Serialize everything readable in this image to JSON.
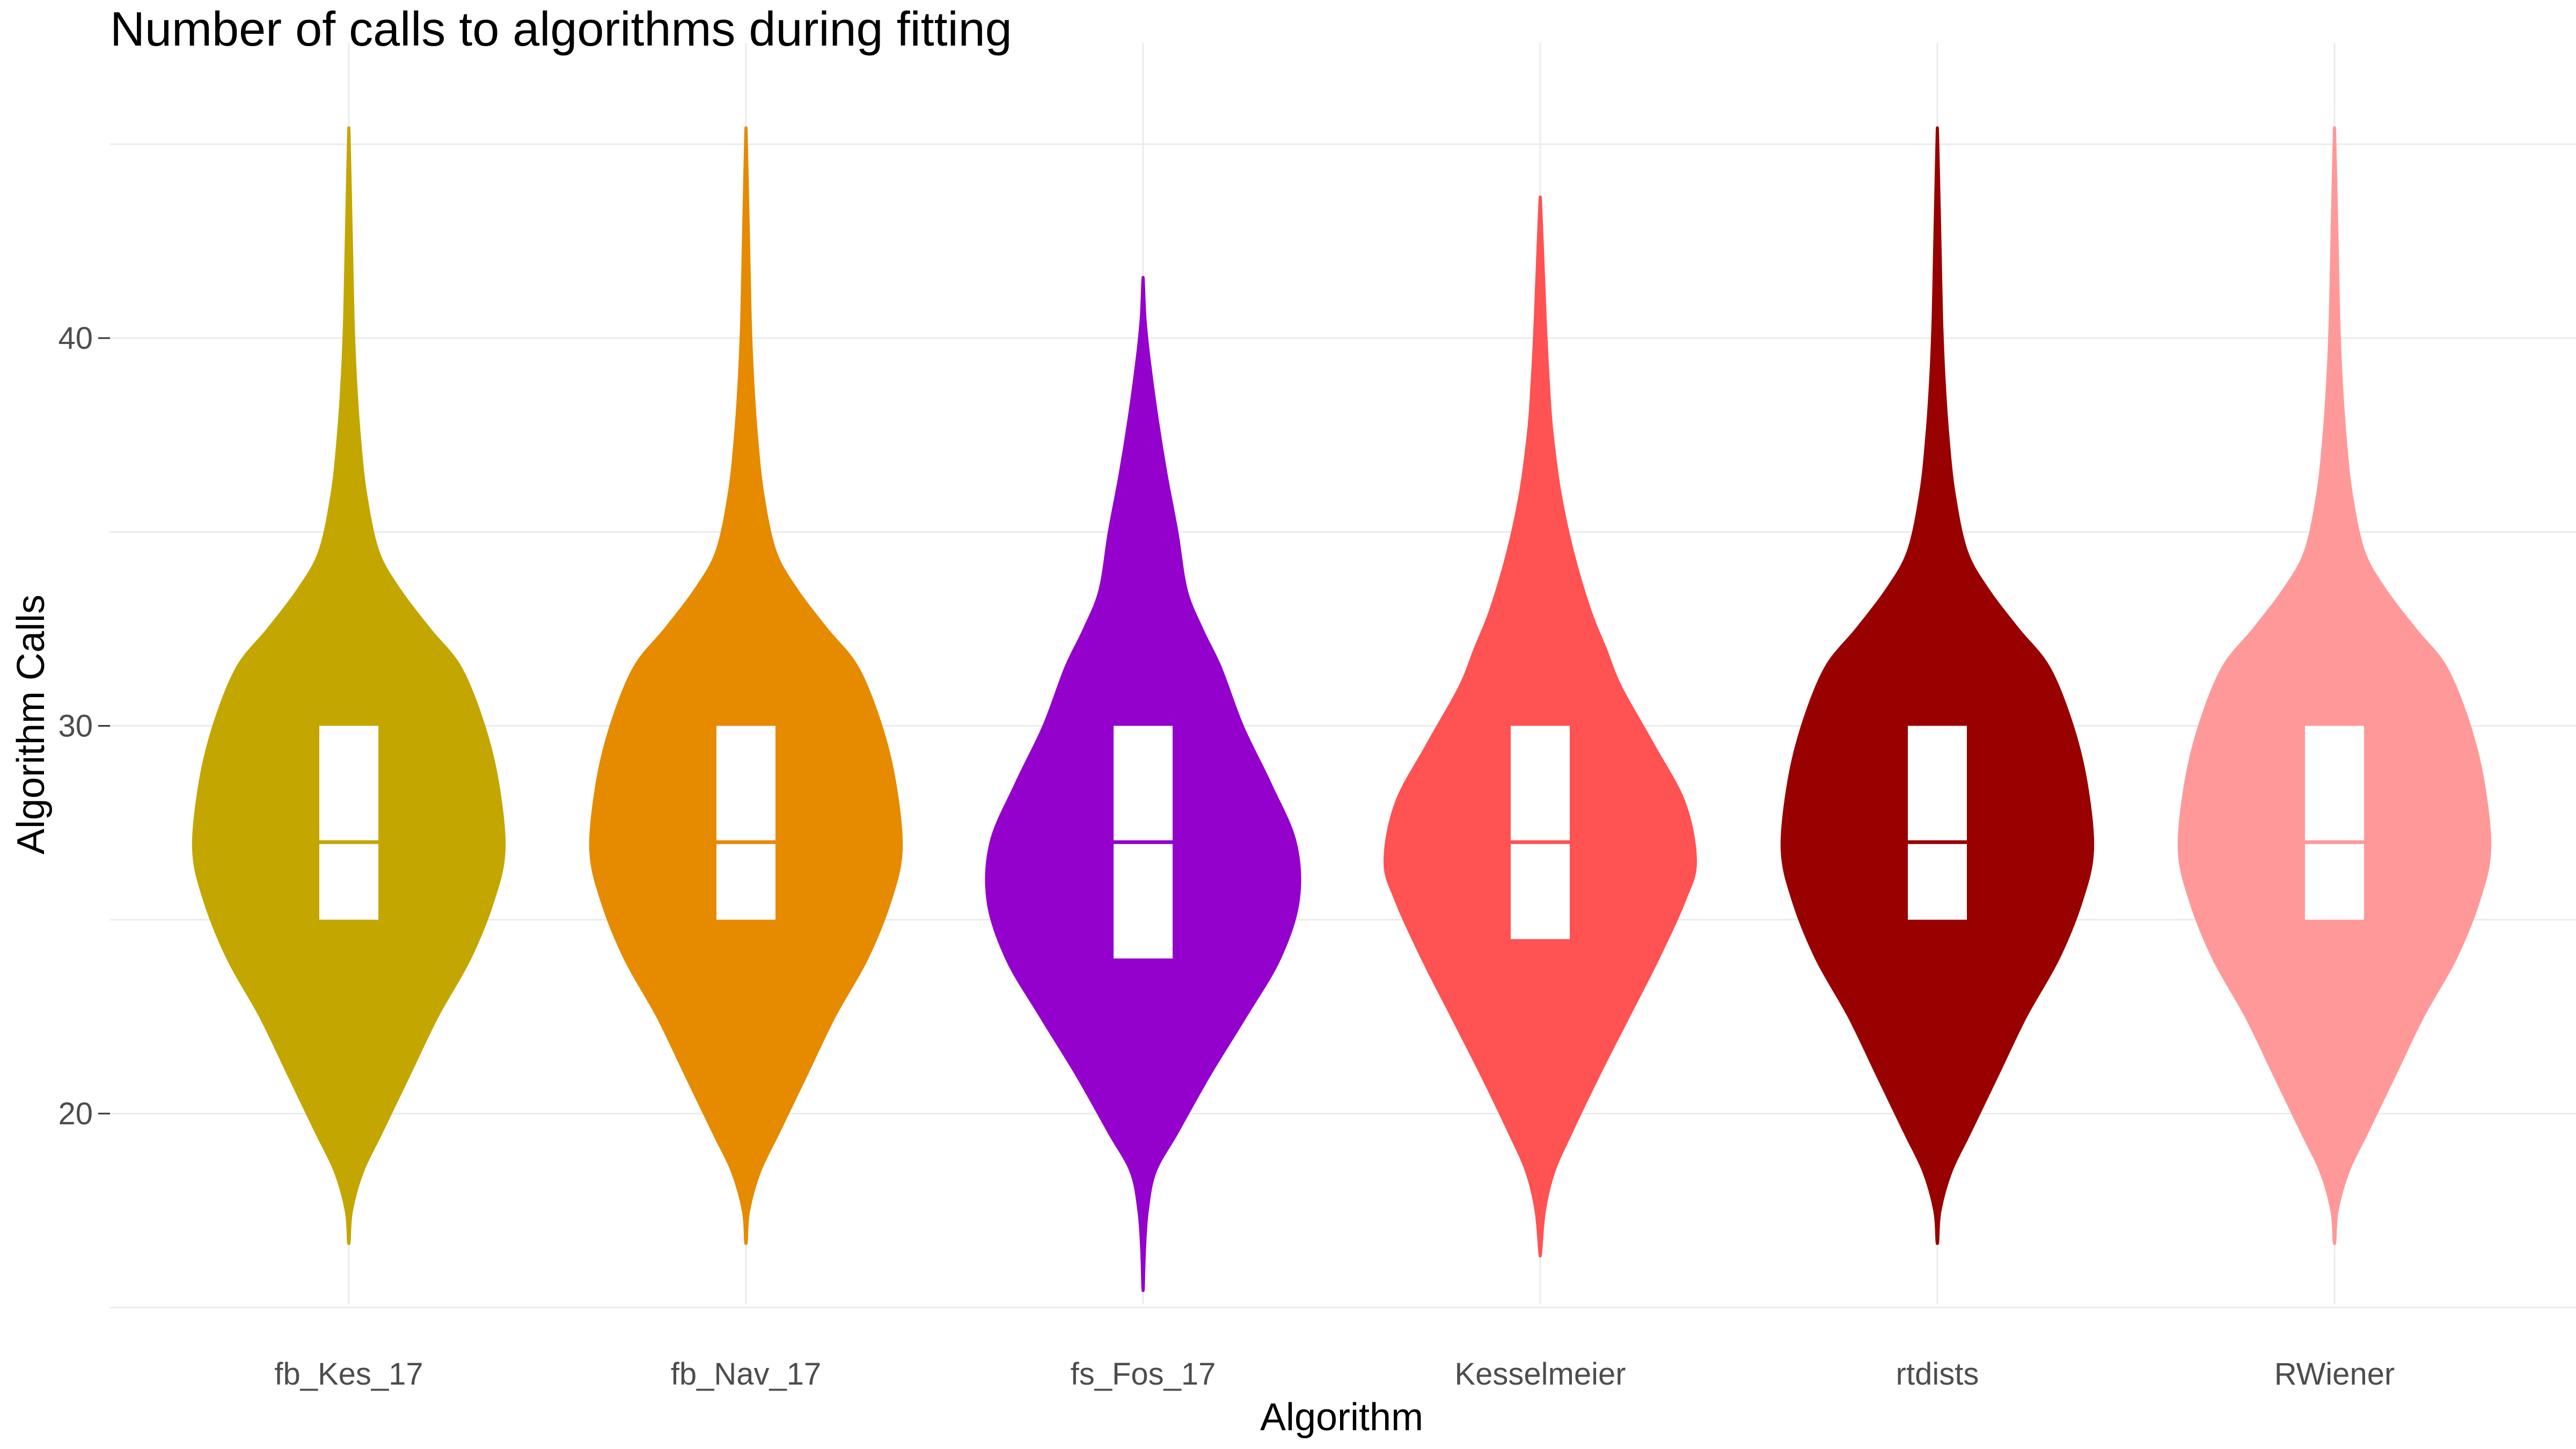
{
  "chart_data": {
    "type": "violin",
    "title": "Number of calls to algorithms during fitting",
    "xlabel": "Algorithm",
    "ylabel": "Algorithm Calls",
    "ylim": [
      14,
      46
    ],
    "y_ticks": [
      20,
      30,
      40
    ],
    "y_tick_labels": [
      "20",
      "30",
      "40"
    ],
    "grid": true,
    "legend": "none",
    "categories": [
      "fb_Kes_17",
      "fb_Nav_17",
      "fs_Fos_17",
      "Kesselmeier",
      "rtdists",
      "RWiener"
    ],
    "series": [
      {
        "category": "fb_Kes_17",
        "color": "#C4A600",
        "min": 16.7,
        "max": 45.3,
        "q1": 25,
        "median": 27,
        "q3": 30,
        "density": [
          [
            16.7,
            0.005
          ],
          [
            17.5,
            0.02
          ],
          [
            18.5,
            0.09
          ],
          [
            19.5,
            0.21
          ],
          [
            21,
            0.39
          ],
          [
            22.5,
            0.57
          ],
          [
            24,
            0.78
          ],
          [
            25.5,
            0.93
          ],
          [
            26.8,
            1.0
          ],
          [
            28.5,
            0.96
          ],
          [
            30,
            0.87
          ],
          [
            31.5,
            0.72
          ],
          [
            32.5,
            0.52
          ],
          [
            33.5,
            0.33
          ],
          [
            34.5,
            0.19
          ],
          [
            36,
            0.11
          ],
          [
            37.5,
            0.07
          ],
          [
            39,
            0.045
          ],
          [
            40.5,
            0.03
          ],
          [
            42,
            0.022
          ],
          [
            43.5,
            0.014
          ],
          [
            45.3,
            0.004
          ]
        ]
      },
      {
        "category": "fb_Nav_17",
        "color": "#E68A00",
        "min": 16.7,
        "max": 45.3,
        "q1": 25,
        "median": 27,
        "q3": 30,
        "density": [
          [
            16.7,
            0.005
          ],
          [
            17.5,
            0.02
          ],
          [
            18.5,
            0.09
          ],
          [
            19.5,
            0.21
          ],
          [
            21,
            0.39
          ],
          [
            22.5,
            0.57
          ],
          [
            24,
            0.78
          ],
          [
            25.5,
            0.93
          ],
          [
            26.8,
            1.0
          ],
          [
            28.5,
            0.96
          ],
          [
            30,
            0.87
          ],
          [
            31.5,
            0.72
          ],
          [
            32.5,
            0.52
          ],
          [
            33.5,
            0.33
          ],
          [
            34.5,
            0.19
          ],
          [
            36,
            0.11
          ],
          [
            37.5,
            0.07
          ],
          [
            39,
            0.045
          ],
          [
            40.5,
            0.03
          ],
          [
            42,
            0.022
          ],
          [
            43.5,
            0.014
          ],
          [
            45.3,
            0.004
          ]
        ]
      },
      {
        "category": "fs_Fos_17",
        "color": "#9400CC",
        "min": 15.5,
        "max": 41.5,
        "q1": 24,
        "median": 27,
        "q3": 30,
        "density": [
          [
            15.5,
            0.004
          ],
          [
            16.5,
            0.012
          ],
          [
            17.5,
            0.03
          ],
          [
            18.5,
            0.08
          ],
          [
            19.5,
            0.22
          ],
          [
            21,
            0.43
          ],
          [
            22.5,
            0.66
          ],
          [
            24,
            0.88
          ],
          [
            25.5,
            1.0
          ],
          [
            27,
            0.98
          ],
          [
            28.5,
            0.82
          ],
          [
            30,
            0.64
          ],
          [
            31.5,
            0.5
          ],
          [
            32.5,
            0.38
          ],
          [
            33.5,
            0.28
          ],
          [
            35,
            0.22
          ],
          [
            36.5,
            0.15
          ],
          [
            38,
            0.09
          ],
          [
            39.5,
            0.04
          ],
          [
            40.5,
            0.015
          ],
          [
            41.5,
            0.004
          ]
        ]
      },
      {
        "category": "Kesselmeier",
        "color": "#FF5252",
        "min": 16.4,
        "max": 43.5,
        "q1": 24.5,
        "median": 27,
        "q3": 30,
        "density": [
          [
            16.4,
            0.005
          ],
          [
            17.5,
            0.03
          ],
          [
            18.5,
            0.09
          ],
          [
            19.5,
            0.2
          ],
          [
            21,
            0.38
          ],
          [
            22.5,
            0.57
          ],
          [
            24,
            0.76
          ],
          [
            25.5,
            0.93
          ],
          [
            26.5,
            1.0
          ],
          [
            28,
            0.93
          ],
          [
            29.5,
            0.73
          ],
          [
            31,
            0.52
          ],
          [
            32,
            0.42
          ],
          [
            33,
            0.32
          ],
          [
            34.5,
            0.21
          ],
          [
            36,
            0.13
          ],
          [
            37.5,
            0.08
          ],
          [
            38.5,
            0.06
          ],
          [
            40,
            0.04
          ],
          [
            41.5,
            0.025
          ],
          [
            43.5,
            0.005
          ]
        ]
      },
      {
        "category": "rtdists",
        "color": "#990000",
        "min": 16.7,
        "max": 45.3,
        "q1": 25,
        "median": 27,
        "q3": 30,
        "density": [
          [
            16.7,
            0.005
          ],
          [
            17.5,
            0.02
          ],
          [
            18.5,
            0.09
          ],
          [
            19.5,
            0.21
          ],
          [
            21,
            0.39
          ],
          [
            22.5,
            0.57
          ],
          [
            24,
            0.78
          ],
          [
            25.5,
            0.93
          ],
          [
            26.8,
            1.0
          ],
          [
            28.5,
            0.96
          ],
          [
            30,
            0.87
          ],
          [
            31.5,
            0.72
          ],
          [
            32.5,
            0.52
          ],
          [
            33.5,
            0.33
          ],
          [
            34.5,
            0.19
          ],
          [
            36,
            0.11
          ],
          [
            37.5,
            0.07
          ],
          [
            39,
            0.045
          ],
          [
            40.5,
            0.03
          ],
          [
            42,
            0.022
          ],
          [
            43.5,
            0.014
          ],
          [
            45.3,
            0.004
          ]
        ]
      },
      {
        "category": "RWiener",
        "color": "#FF9999",
        "min": 16.7,
        "max": 45.3,
        "q1": 25,
        "median": 27,
        "q3": 30,
        "density": [
          [
            16.7,
            0.005
          ],
          [
            17.5,
            0.02
          ],
          [
            18.5,
            0.09
          ],
          [
            19.5,
            0.21
          ],
          [
            21,
            0.39
          ],
          [
            22.5,
            0.57
          ],
          [
            24,
            0.78
          ],
          [
            25.5,
            0.93
          ],
          [
            26.8,
            1.0
          ],
          [
            28.5,
            0.96
          ],
          [
            30,
            0.87
          ],
          [
            31.5,
            0.72
          ],
          [
            32.5,
            0.52
          ],
          [
            33.5,
            0.33
          ],
          [
            34.5,
            0.19
          ],
          [
            36,
            0.11
          ],
          [
            37.5,
            0.07
          ],
          [
            39,
            0.045
          ],
          [
            40.5,
            0.03
          ],
          [
            42,
            0.022
          ],
          [
            43.5,
            0.014
          ],
          [
            45.3,
            0.004
          ]
        ]
      }
    ]
  }
}
